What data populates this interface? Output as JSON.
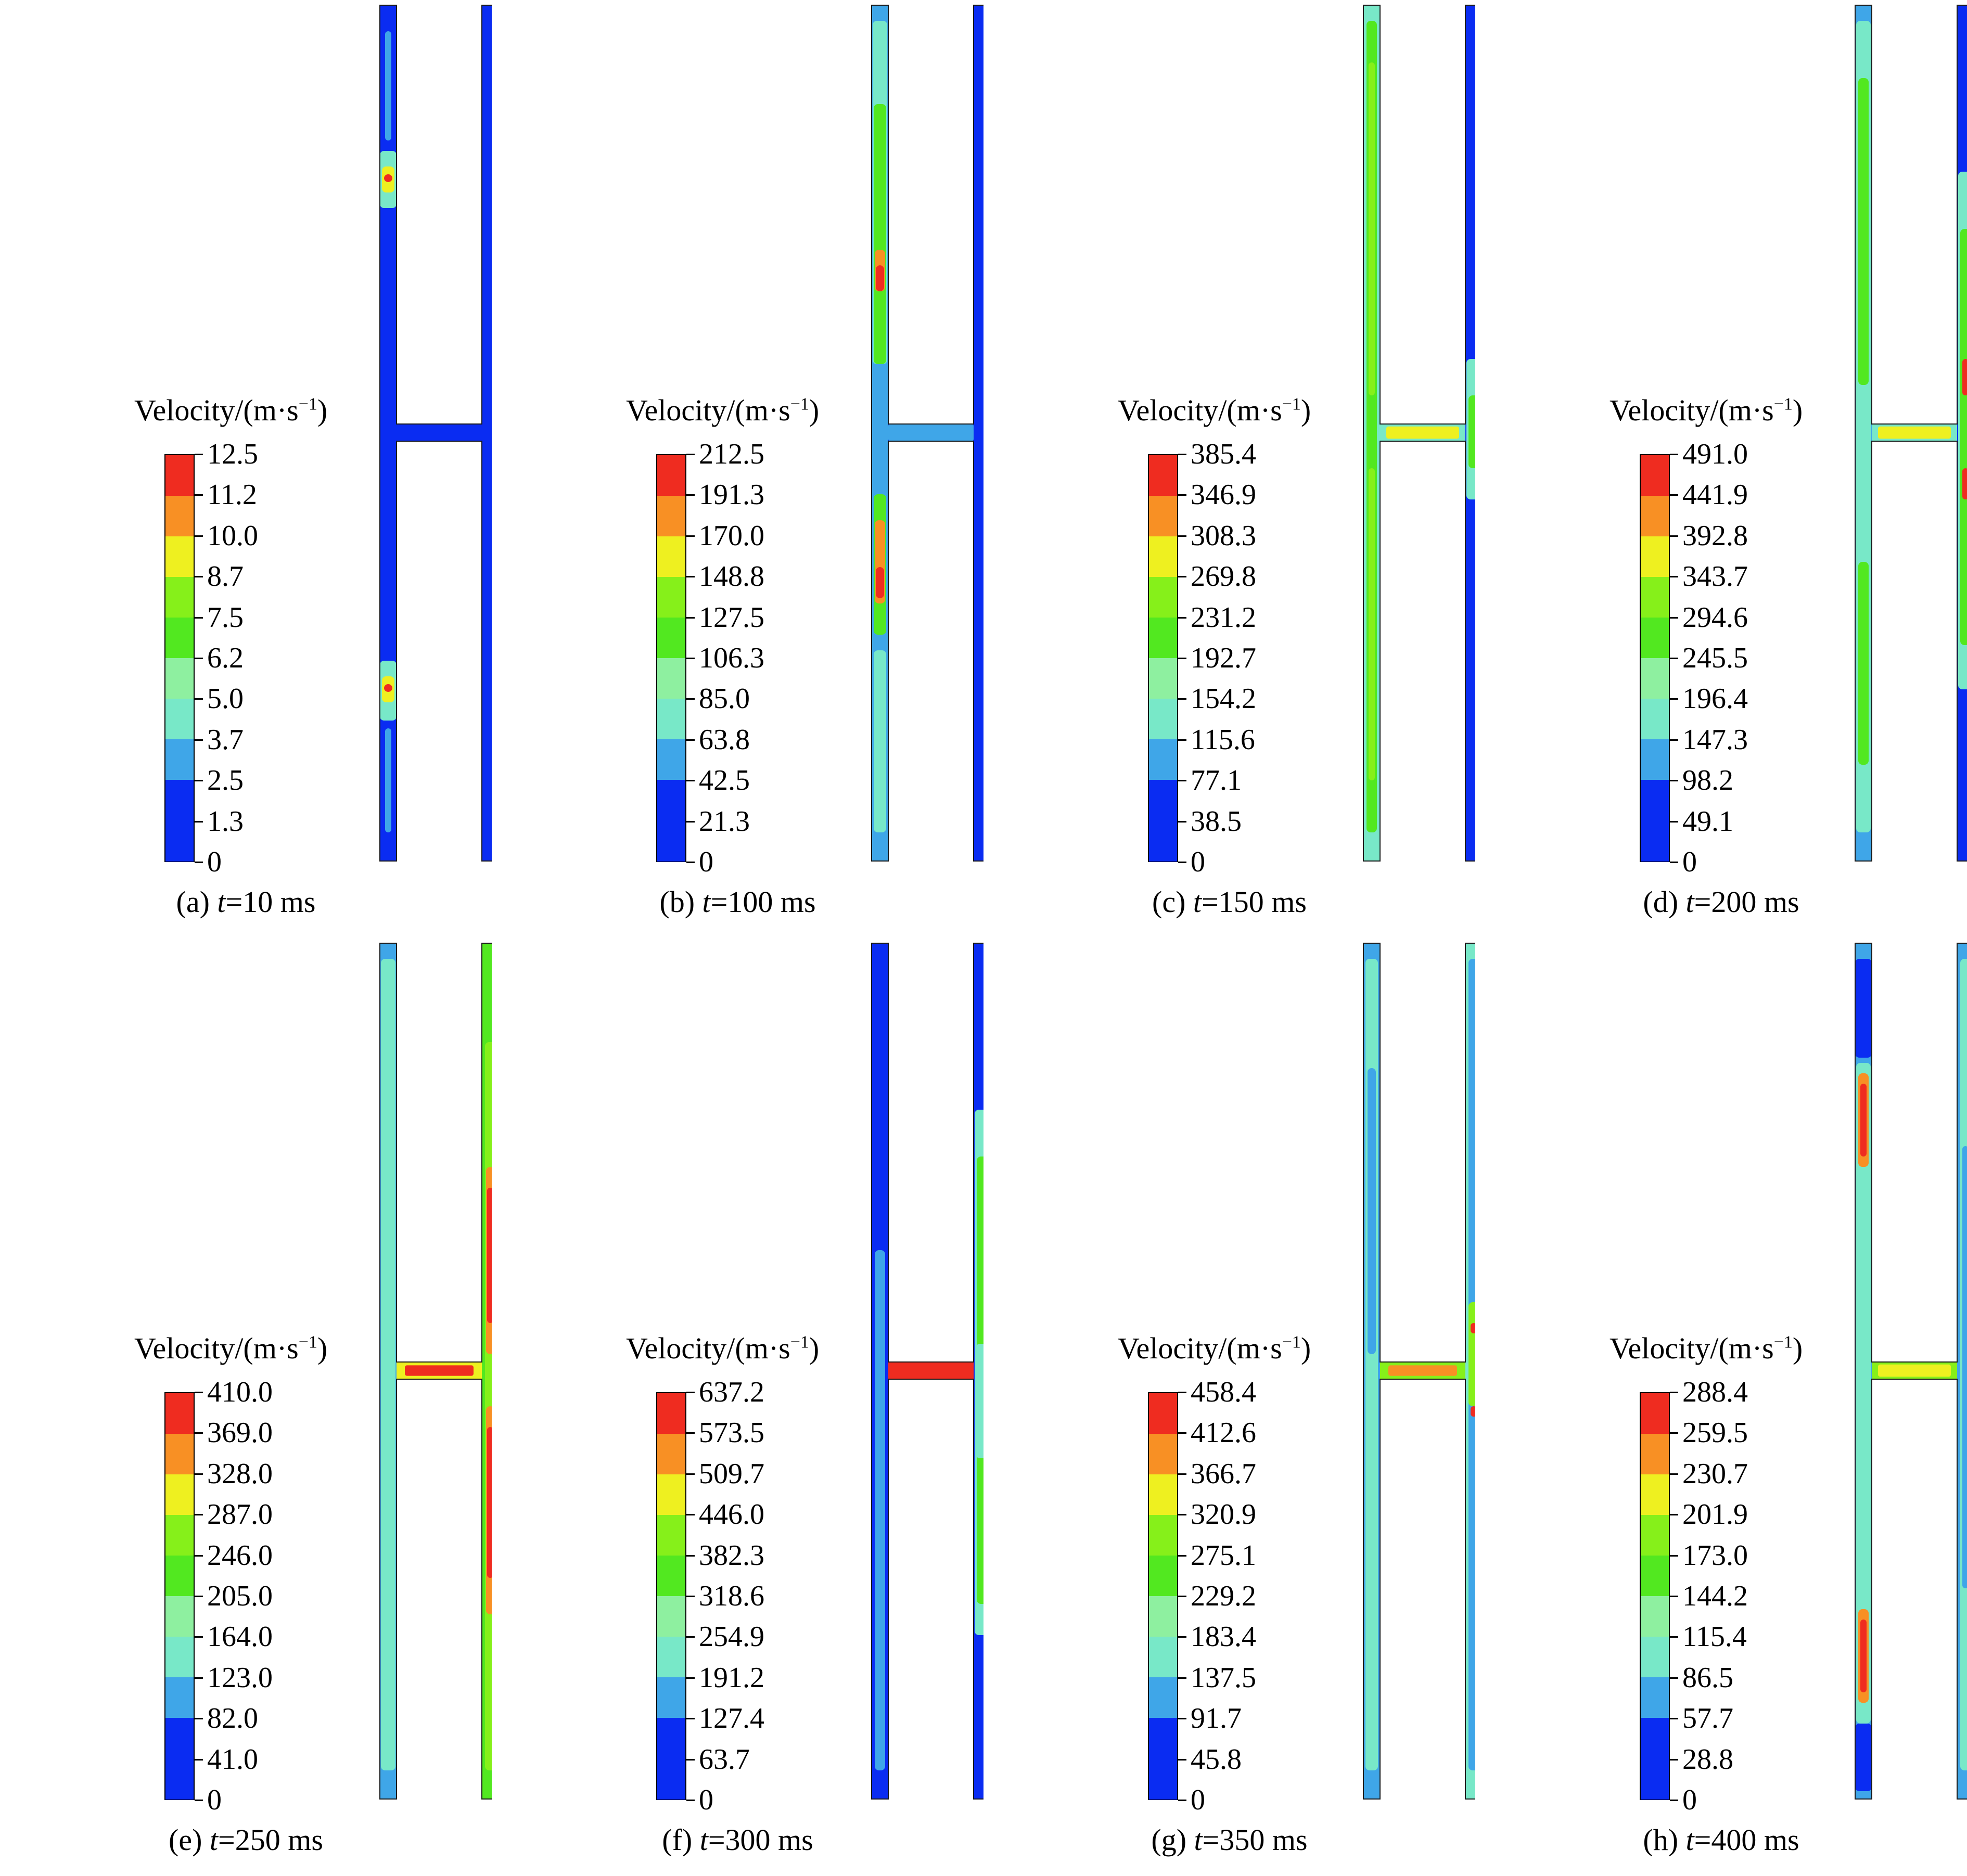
{
  "colors": [
    "#0a2cf2",
    "#3fa6e8",
    "#78e8c8",
    "#8ef0a0",
    "#52e820",
    "#86f01a",
    "#eef020",
    "#f89024",
    "#ef2c20"
  ],
  "panels": [
    {
      "legend_title": "Velocity/(m·s",
      "legend_sup": "−1",
      "legend_close": ")",
      "labels": [
        "12.5",
        "11.2",
        "10.0",
        "8.7",
        "7.5",
        "6.2",
        "5.0",
        "3.7",
        "2.5",
        "1.3",
        "0"
      ],
      "caption_prefix": "(a) ",
      "caption_var": "t",
      "caption_value": "=10 ms"
    },
    {
      "legend_title": "Velocity/(m·s",
      "legend_sup": "−1",
      "legend_close": ")",
      "labels": [
        "212.5",
        "191.3",
        "170.0",
        "148.8",
        "127.5",
        "106.3",
        "85.0",
        "63.8",
        "42.5",
        "21.3",
        "0"
      ],
      "caption_prefix": "(b) ",
      "caption_var": "t",
      "caption_value": "=100 ms"
    },
    {
      "legend_title": "Velocity/(m·s",
      "legend_sup": "−1",
      "legend_close": ")",
      "labels": [
        "385.4",
        "346.9",
        "308.3",
        "269.8",
        "231.2",
        "192.7",
        "154.2",
        "115.6",
        "77.1",
        "38.5",
        "0"
      ],
      "caption_prefix": "(c) ",
      "caption_var": "t",
      "caption_value": "=150 ms"
    },
    {
      "legend_title": "Velocity/(m·s",
      "legend_sup": "−1",
      "legend_close": ")",
      "labels": [
        "491.0",
        "441.9",
        "392.8",
        "343.7",
        "294.6",
        "245.5",
        "196.4",
        "147.3",
        "98.2",
        "49.1",
        "0"
      ],
      "caption_prefix": "(d) ",
      "caption_var": "t",
      "caption_value": "=200 ms"
    },
    {
      "legend_title": "Velocity/(m·s",
      "legend_sup": "−1",
      "legend_close": ")",
      "labels": [
        "410.0",
        "369.0",
        "328.0",
        "287.0",
        "246.0",
        "205.0",
        "164.0",
        "123.0",
        "82.0",
        "41.0",
        "0"
      ],
      "caption_prefix": "(e) ",
      "caption_var": "t",
      "caption_value": "=250 ms"
    },
    {
      "legend_title": "Velocity/(m·s",
      "legend_sup": "−1",
      "legend_close": ")",
      "labels": [
        "637.2",
        "573.5",
        "509.7",
        "446.0",
        "382.3",
        "318.6",
        "254.9",
        "191.2",
        "127.4",
        "63.7",
        "0"
      ],
      "caption_prefix": "(f) ",
      "caption_var": "t",
      "caption_value": "=300 ms"
    },
    {
      "legend_title": "Velocity/(m·s",
      "legend_sup": "−1",
      "legend_close": ")",
      "labels": [
        "458.4",
        "412.6",
        "366.7",
        "320.9",
        "275.1",
        "229.2",
        "183.4",
        "137.5",
        "91.7",
        "45.8",
        "0"
      ],
      "caption_prefix": "(g) ",
      "caption_var": "t",
      "caption_value": "=350 ms"
    },
    {
      "legend_title": "Velocity/(m·s",
      "legend_sup": "−1",
      "legend_close": ")",
      "labels": [
        "288.4",
        "259.5",
        "230.7",
        "201.9",
        "173.0",
        "144.2",
        "115.4",
        "86.5",
        "57.7",
        "28.8",
        "0"
      ],
      "caption_prefix": "(h) ",
      "caption_var": "t",
      "caption_value": "=400 ms"
    }
  ]
}
